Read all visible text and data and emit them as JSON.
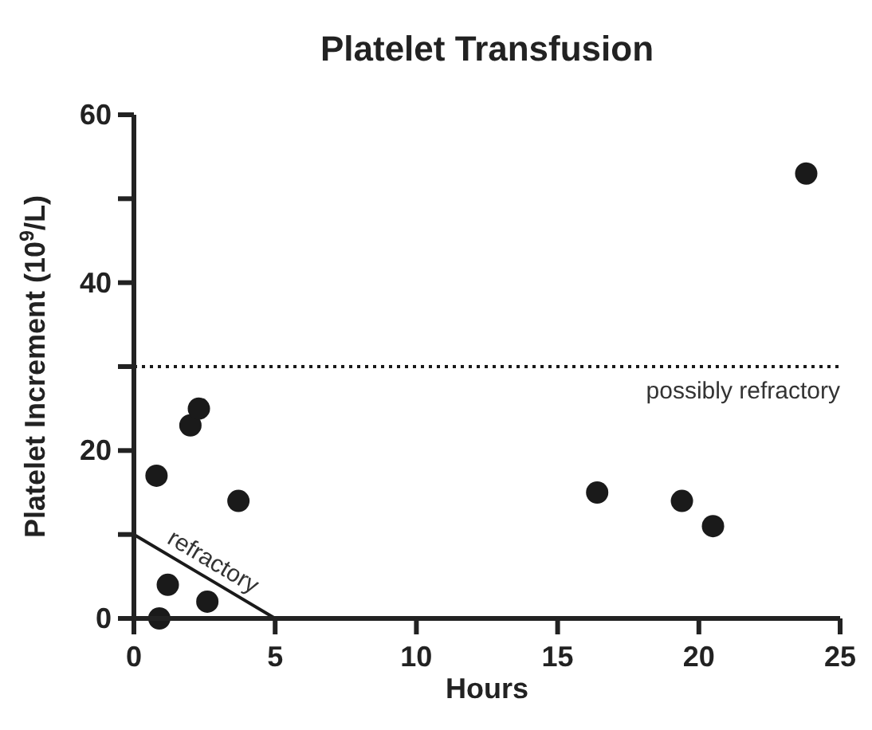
{
  "chart_data": {
    "type": "scatter",
    "title": "Platelet Transfusion",
    "xlabel": "Hours",
    "ylabel": "Platelet Increment (10$^{9}$/L)",
    "xlim": [
      0,
      25
    ],
    "xticks": [
      0,
      5,
      10,
      15,
      20,
      25
    ],
    "ylim": [
      0,
      60
    ],
    "yticks": [
      0,
      {
        "value": 10,
        "label": null
      },
      20,
      {
        "value": 30,
        "label": null
      },
      40,
      {
        "value": 50,
        "label": null
      },
      60
    ],
    "grid": false,
    "marker": "circle",
    "series": [
      {
        "color": "#1a1a1a",
        "x": [
          0.8,
          1.2,
          0.9,
          2.0,
          2.3,
          2.6,
          3.7,
          16.4,
          19.4,
          20.5,
          23.8
        ],
        "values": [
          17,
          4,
          0,
          23,
          25,
          2,
          14,
          15,
          14,
          11,
          53
        ]
      },
      {
        "type": "line",
        "color": "#1a1a1a",
        "marker": "none",
        "line_style": "solid",
        "x": [
          0,
          5
        ],
        "values": [
          10,
          0
        ]
      }
    ],
    "ref_lines": [
      {
        "axis": "y",
        "value": 30,
        "label": "possibly refractory",
        "color": "#1a1a1a",
        "line_style": "dotted"
      }
    ],
    "annotations": [
      {
        "text": "refractory",
        "x": 2.5,
        "y": 5
      }
    ]
  }
}
